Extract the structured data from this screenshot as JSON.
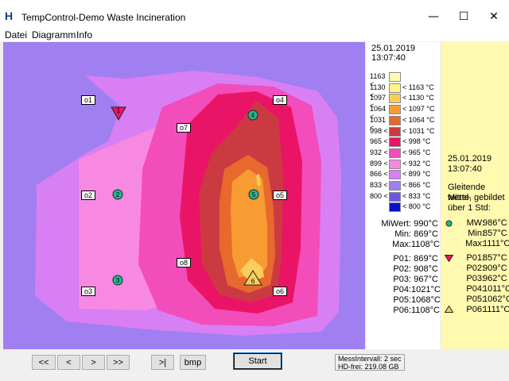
{
  "window": {
    "title": "TempControl-Demo Waste Incineration",
    "app_icon": "H",
    "minimize": "—",
    "maximize": "☐",
    "close": "✕"
  },
  "menu": [
    "Datei",
    "Diagramm",
    "Info"
  ],
  "map": {
    "labels": [
      "o1",
      "o2",
      "o3",
      "o4",
      "o5",
      "o6",
      "o7",
      "o8"
    ],
    "markers": [
      "1",
      "2",
      "3",
      "4",
      "5",
      "6"
    ]
  },
  "legend": {
    "date": "25.01.2019",
    "time": "13:07:40",
    "scale": [
      {
        "left": "1163 <",
        "right": "",
        "color": "#fffcb0"
      },
      {
        "left": "1130 <",
        "right": "< 1163 °C",
        "color": "#fff38a"
      },
      {
        "left": "1097 <",
        "right": "< 1130 °C",
        "color": "#f9cf5a"
      },
      {
        "left": "1064 <",
        "right": "< 1097 °C",
        "color": "#f89b33"
      },
      {
        "left": "1031 <",
        "right": "< 1064 °C",
        "color": "#e8692d"
      },
      {
        "left": "998 <",
        "right": "< 1031 °C",
        "color": "#cc3a41"
      },
      {
        "left": "965 <",
        "right": "< 998 °C",
        "color": "#ea1466"
      },
      {
        "left": "932 <",
        "right": "< 965 °C",
        "color": "#f24dbb"
      },
      {
        "left": "899 <",
        "right": "< 932 °C",
        "color": "#f889e2"
      },
      {
        "left": "866 <",
        "right": "< 899 °C",
        "color": "#d77ff3"
      },
      {
        "left": "833 <",
        "right": "< 866 °C",
        "color": "#9f80f1"
      },
      {
        "left": "800 <",
        "right": "< 833 °C",
        "color": "#6a57e6"
      },
      {
        "left": "",
        "right": "< 800 °C",
        "color": "#0a10c8"
      }
    ],
    "stats": [
      {
        "label": "MiWert:",
        "value": "990°C"
      },
      {
        "label": "Min:",
        "value": "869°C"
      },
      {
        "label": "Max:",
        "value": "1108°C"
      }
    ],
    "points": [
      {
        "label": "P01:",
        "value": "869°C"
      },
      {
        "label": "P02:",
        "value": "908°C"
      },
      {
        "label": "P03:",
        "value": "967°C"
      },
      {
        "label": "P04:",
        "value": "1021°C"
      },
      {
        "label": "P05:",
        "value": "1068°C"
      },
      {
        "label": "P06:",
        "value": "1108°C"
      }
    ]
  },
  "rolling": {
    "date": "25.01.2019",
    "time": "13:07:40",
    "desc": [
      "Gleitende Mittel-",
      "werte, gebildet",
      "über 1 Std:"
    ],
    "stats": [
      {
        "label": "MW:",
        "value": "986°C"
      },
      {
        "label": "Min:",
        "value": "857°C"
      },
      {
        "label": "Max:",
        "value": "1111°C"
      }
    ],
    "points": [
      {
        "label": "P01:",
        "value": "857°C"
      },
      {
        "label": "P02:",
        "value": "909°C"
      },
      {
        "label": "P03:",
        "value": "962°C"
      },
      {
        "label": "P04:",
        "value": "1011°C"
      },
      {
        "label": "P05:",
        "value": "1062°C"
      },
      {
        "label": "P06:",
        "value": "1111°C"
      }
    ]
  },
  "toolbar": {
    "first": "<<",
    "prev": "<",
    "next": ">",
    "last": ">>",
    "end": ">|",
    "bmp": "bmp",
    "start": "Start"
  },
  "status": {
    "interval": "MessIntervall: 2 sec",
    "disk": "HD-frei: 219.08 GB"
  }
}
